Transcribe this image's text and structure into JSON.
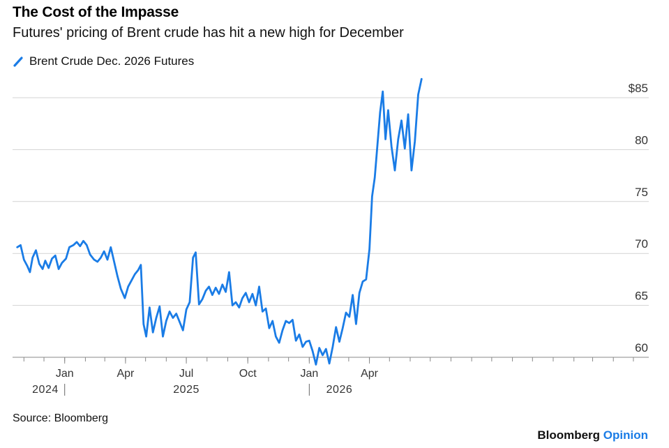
{
  "header": {
    "title": "The Cost of the Impasse",
    "subtitle": "Futures' pricing of Brent crude has hit a new high for December"
  },
  "footer": {
    "source": "Source: Bloomberg",
    "brand_name": "Bloomberg",
    "brand_suffix": "Opinion"
  },
  "colors": {
    "series": "#1a7ce6",
    "grid": "#d3d3d3",
    "axis_text": "#333333"
  },
  "chart_data": {
    "type": "line",
    "title": "The Cost of the Impasse",
    "subtitle": "Futures' pricing of Brent crude has hit a new high for December",
    "xlabel": "",
    "ylabel": "",
    "ylim": [
      59,
      87
    ],
    "y_ticks": [
      60,
      65,
      70,
      75,
      80,
      85
    ],
    "y_tick_labels": [
      "60",
      "65",
      "70",
      "75",
      "80",
      "$85"
    ],
    "x_range": [
      "2023-10-15",
      "2026-05-24"
    ],
    "x_ticks": [
      {
        "date": "2024-01-01",
        "label": "Jan"
      },
      {
        "date": "2024-04-01",
        "label": "Apr"
      },
      {
        "date": "2024-07-01",
        "label": "Jul"
      },
      {
        "date": "2024-10-01",
        "label": "Oct"
      },
      {
        "date": "2025-01-01",
        "label": "Jan"
      },
      {
        "date": "2025-04-01",
        "label": "Apr"
      }
    ],
    "year_labels": [
      {
        "label": "2024",
        "center": "2023-12-03"
      },
      {
        "label": "2025",
        "center": "2024-07-01"
      },
      {
        "label": "2026",
        "center": "2025-02-15"
      }
    ],
    "year_dividers": [
      "2024-01-01",
      "2025-01-01"
    ],
    "grid": true,
    "legend_position": "top-left",
    "series": [
      {
        "name": "Brent Crude Dec. 2026 Futures",
        "points": [
          [
            "2023-10-22",
            70.6
          ],
          [
            "2023-10-27",
            70.8
          ],
          [
            "2023-11-01",
            69.4
          ],
          [
            "2023-11-06",
            68.8
          ],
          [
            "2023-11-10",
            68.2
          ],
          [
            "2023-11-14",
            69.6
          ],
          [
            "2023-11-19",
            70.3
          ],
          [
            "2023-11-24",
            69.0
          ],
          [
            "2023-11-29",
            68.5
          ],
          [
            "2023-12-03",
            69.3
          ],
          [
            "2023-12-08",
            68.6
          ],
          [
            "2023-12-13",
            69.5
          ],
          [
            "2023-12-18",
            69.8
          ],
          [
            "2023-12-23",
            68.5
          ],
          [
            "2023-12-28",
            69.1
          ],
          [
            "2024-01-03",
            69.5
          ],
          [
            "2024-01-08",
            70.6
          ],
          [
            "2024-01-14",
            70.8
          ],
          [
            "2024-01-19",
            71.1
          ],
          [
            "2024-01-24",
            70.7
          ],
          [
            "2024-01-29",
            71.2
          ],
          [
            "2024-02-03",
            70.8
          ],
          [
            "2024-02-08",
            69.9
          ],
          [
            "2024-02-14",
            69.4
          ],
          [
            "2024-02-19",
            69.2
          ],
          [
            "2024-02-24",
            69.6
          ],
          [
            "2024-02-29",
            70.2
          ],
          [
            "2024-03-05",
            69.4
          ],
          [
            "2024-03-10",
            70.6
          ],
          [
            "2024-03-15",
            69.2
          ],
          [
            "2024-03-20",
            67.8
          ],
          [
            "2024-03-25",
            66.6
          ],
          [
            "2024-03-31",
            65.7
          ],
          [
            "2024-04-05",
            66.8
          ],
          [
            "2024-04-10",
            67.4
          ],
          [
            "2024-04-15",
            68.0
          ],
          [
            "2024-04-20",
            68.4
          ],
          [
            "2024-04-24",
            68.9
          ],
          [
            "2024-04-28",
            63.2
          ],
          [
            "2024-05-02",
            62.0
          ],
          [
            "2024-05-07",
            64.8
          ],
          [
            "2024-05-12",
            62.4
          ],
          [
            "2024-05-17",
            63.8
          ],
          [
            "2024-05-22",
            64.9
          ],
          [
            "2024-05-27",
            62.0
          ],
          [
            "2024-06-01",
            63.5
          ],
          [
            "2024-06-06",
            64.4
          ],
          [
            "2024-06-11",
            63.8
          ],
          [
            "2024-06-16",
            64.2
          ],
          [
            "2024-06-21",
            63.4
          ],
          [
            "2024-06-26",
            62.6
          ],
          [
            "2024-07-01",
            64.6
          ],
          [
            "2024-07-06",
            65.3
          ],
          [
            "2024-07-11",
            69.6
          ],
          [
            "2024-07-15",
            70.1
          ],
          [
            "2024-07-20",
            65.1
          ],
          [
            "2024-07-25",
            65.6
          ],
          [
            "2024-07-30",
            66.4
          ],
          [
            "2024-08-04",
            66.8
          ],
          [
            "2024-08-09",
            66.0
          ],
          [
            "2024-08-14",
            66.7
          ],
          [
            "2024-08-19",
            66.1
          ],
          [
            "2024-08-24",
            67.0
          ],
          [
            "2024-08-29",
            66.3
          ],
          [
            "2024-09-03",
            68.2
          ],
          [
            "2024-09-08",
            65.0
          ],
          [
            "2024-09-13",
            65.3
          ],
          [
            "2024-09-18",
            64.8
          ],
          [
            "2024-09-23",
            65.7
          ],
          [
            "2024-09-28",
            66.2
          ],
          [
            "2024-10-03",
            65.3
          ],
          [
            "2024-10-08",
            66.1
          ],
          [
            "2024-10-13",
            65.0
          ],
          [
            "2024-10-18",
            66.8
          ],
          [
            "2024-10-23",
            64.4
          ],
          [
            "2024-10-28",
            64.7
          ],
          [
            "2024-11-02",
            62.8
          ],
          [
            "2024-11-07",
            63.5
          ],
          [
            "2024-11-12",
            62.0
          ],
          [
            "2024-11-17",
            61.4
          ],
          [
            "2024-11-22",
            62.6
          ],
          [
            "2024-11-27",
            63.5
          ],
          [
            "2024-12-02",
            63.3
          ],
          [
            "2024-12-07",
            63.6
          ],
          [
            "2024-12-12",
            61.6
          ],
          [
            "2024-12-17",
            62.2
          ],
          [
            "2024-12-22",
            61.0
          ],
          [
            "2024-12-27",
            61.5
          ],
          [
            "2025-01-01",
            61.6
          ],
          [
            "2025-01-06",
            60.6
          ],
          [
            "2025-01-11",
            59.3
          ],
          [
            "2025-01-16",
            60.9
          ],
          [
            "2025-01-21",
            60.2
          ],
          [
            "2025-01-26",
            60.8
          ],
          [
            "2025-01-31",
            59.4
          ],
          [
            "2025-02-05",
            61.0
          ],
          [
            "2025-02-10",
            62.9
          ],
          [
            "2025-02-15",
            61.5
          ],
          [
            "2025-02-20",
            62.8
          ],
          [
            "2025-02-25",
            64.3
          ],
          [
            "2025-03-02",
            63.9
          ],
          [
            "2025-03-07",
            66.0
          ],
          [
            "2025-03-12",
            63.2
          ],
          [
            "2025-03-17",
            66.2
          ],
          [
            "2025-03-22",
            67.3
          ],
          [
            "2025-03-27",
            67.5
          ],
          [
            "2025-04-01",
            70.4
          ],
          [
            "2025-04-05",
            75.5
          ],
          [
            "2025-04-09",
            77.3
          ],
          [
            "2025-04-13",
            80.5
          ],
          [
            "2025-04-17",
            83.6
          ],
          [
            "2025-04-21",
            85.6
          ],
          [
            "2025-04-25",
            81.0
          ],
          [
            "2025-04-29",
            83.8
          ],
          [
            "2025-05-04",
            80.3
          ],
          [
            "2025-05-09",
            78.0
          ],
          [
            "2025-05-14",
            81.0
          ],
          [
            "2025-05-19",
            82.8
          ],
          [
            "2025-05-24",
            80.1
          ],
          [
            "2025-05-29",
            83.4
          ],
          [
            "2025-06-03",
            78.0
          ],
          [
            "2025-06-08",
            80.8
          ],
          [
            "2025-06-13",
            85.3
          ],
          [
            "2025-06-18",
            86.8
          ]
        ]
      }
    ]
  }
}
